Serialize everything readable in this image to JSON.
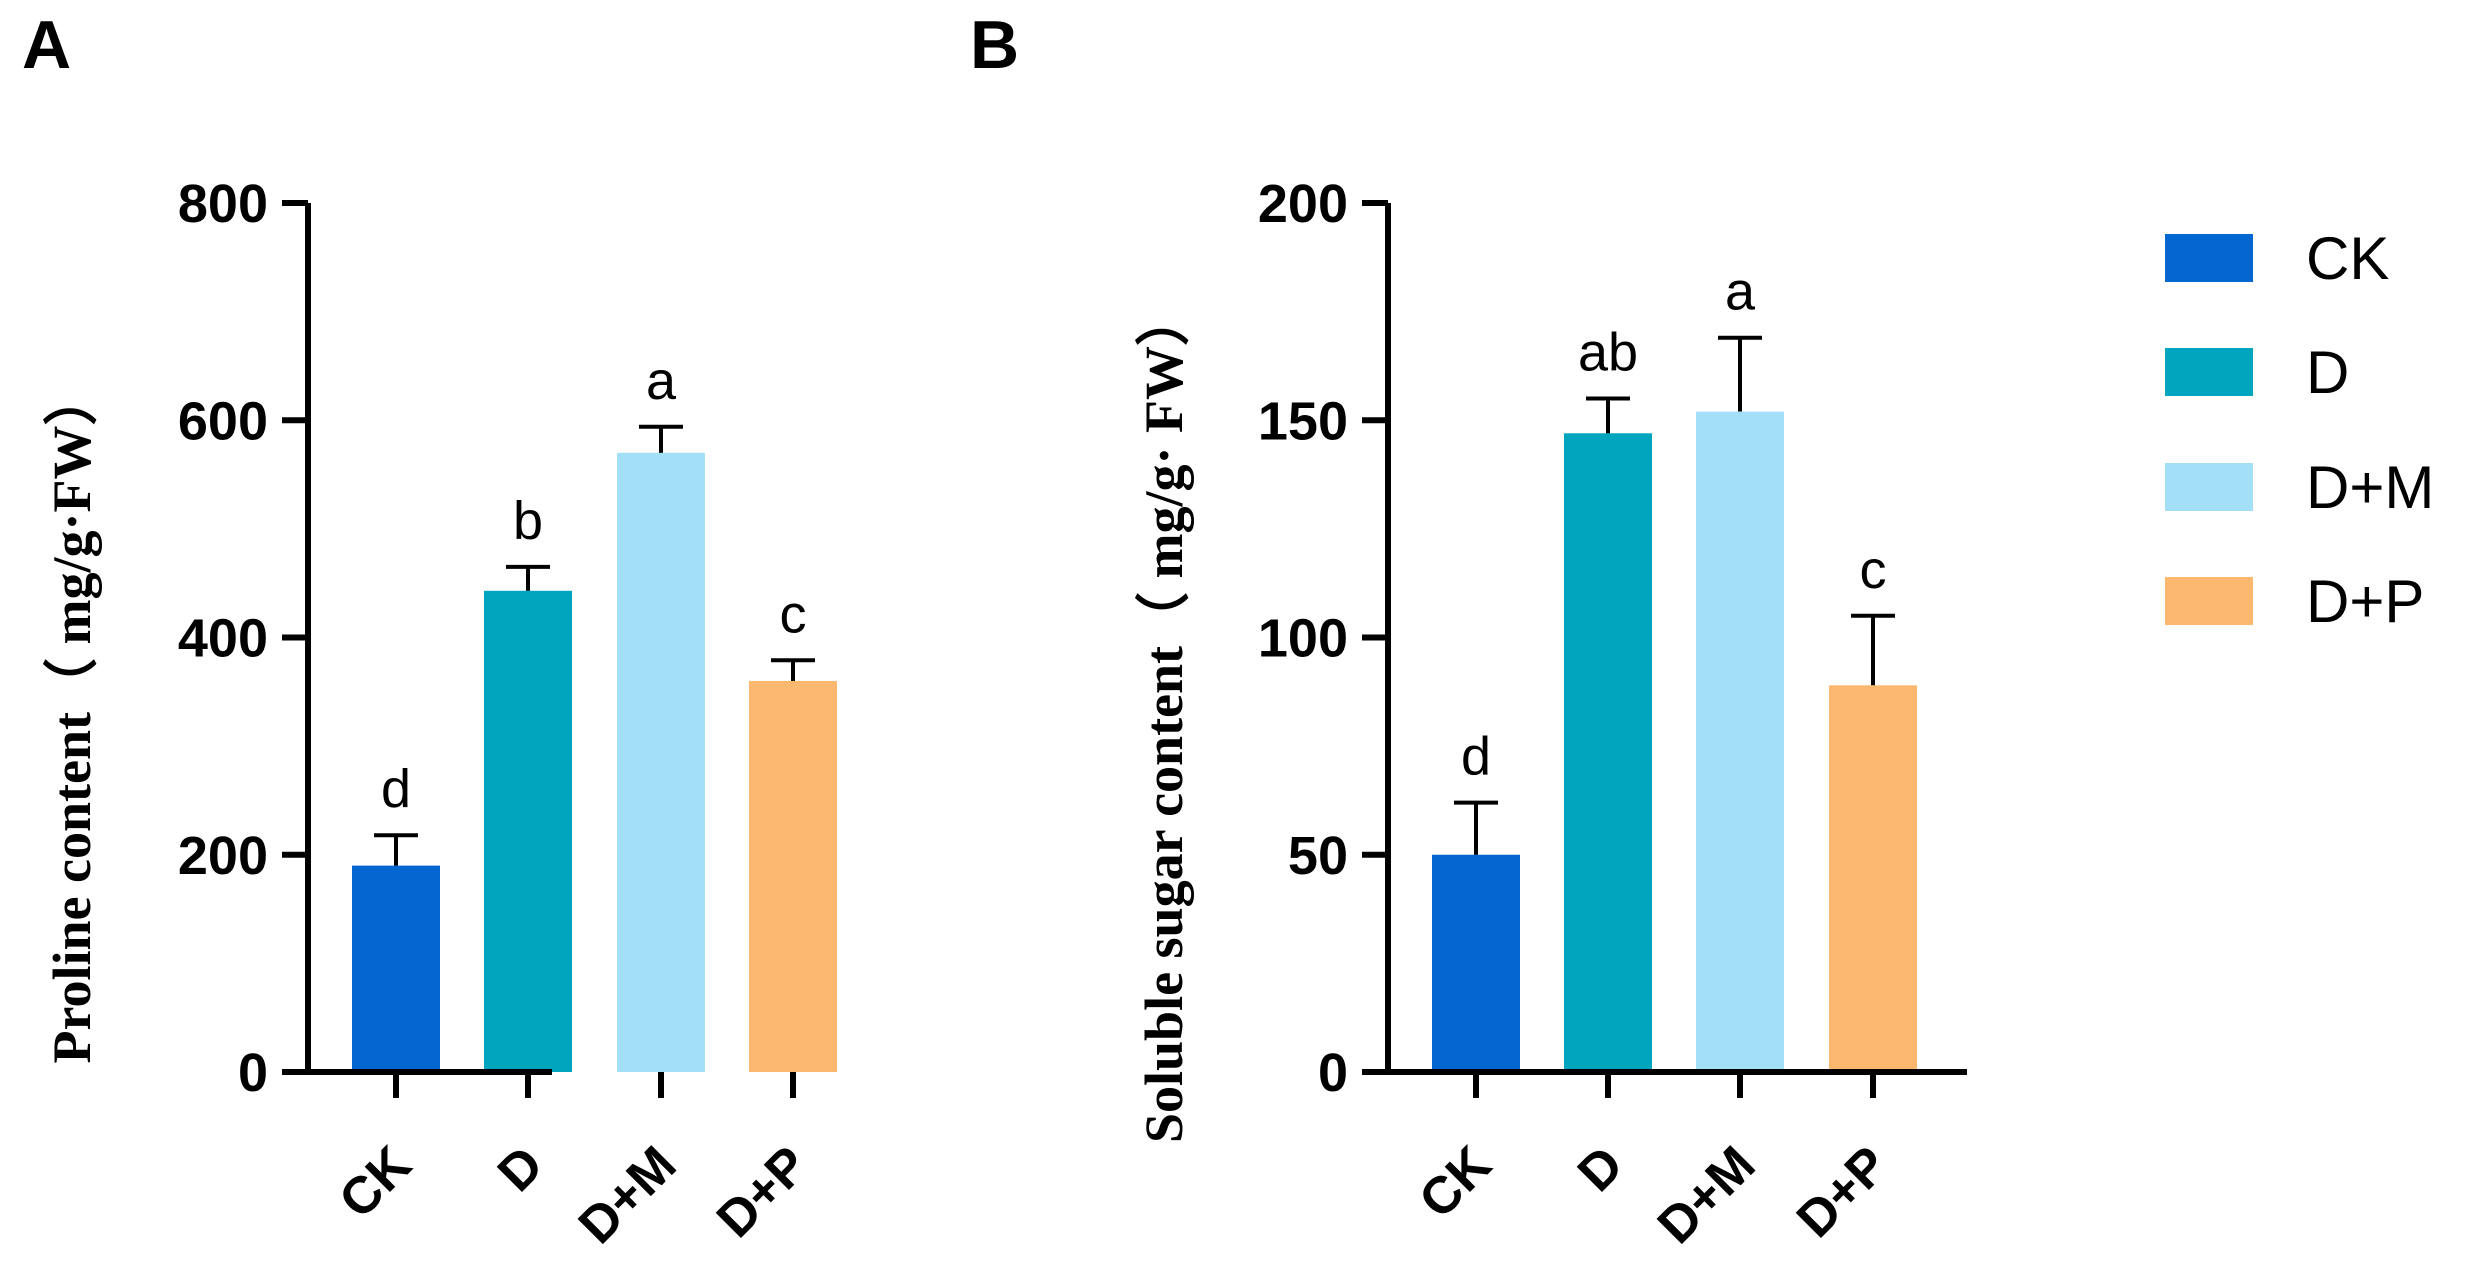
{
  "legend": {
    "entries": [
      {
        "label": "CK",
        "color": "#0466D0"
      },
      {
        "label": "D",
        "color": "#01A5BE"
      },
      {
        "label": "D+M",
        "color": "#A3DFF7"
      },
      {
        "label": "D+P",
        "color": "#FDB870"
      }
    ]
  },
  "chart_data": [
    {
      "panel": "A",
      "type": "bar",
      "categories": [
        "CK",
        "D",
        "D+M",
        "D+P"
      ],
      "values": [
        190,
        443,
        570,
        360
      ],
      "errors": [
        28,
        22,
        24,
        19
      ],
      "significance": [
        "d",
        "b",
        "a",
        "c"
      ],
      "colors": [
        "#0466D0",
        "#01A5BE",
        "#A3DFF7",
        "#FDB870"
      ],
      "ylabel": "Proline content（ mg/g·FW）",
      "ylim": [
        0,
        800
      ],
      "yticks": [
        0,
        200,
        400,
        600,
        800
      ],
      "xlabel": "",
      "title": ""
    },
    {
      "panel": "B",
      "type": "bar",
      "categories": [
        "CK",
        "D",
        "D+M",
        "D+P"
      ],
      "values": [
        50,
        147,
        152,
        89
      ],
      "errors": [
        12,
        8,
        17,
        16
      ],
      "significance": [
        "d",
        "ab",
        "a",
        "c"
      ],
      "colors": [
        "#0466D0",
        "#01A5BE",
        "#A3DFF7",
        "#FDB870"
      ],
      "ylabel": "Soluble sugar content（ mg/g· FW）",
      "ylim": [
        0,
        200
      ],
      "yticks": [
        0,
        50,
        100,
        150,
        200
      ],
      "xlabel": "",
      "title": ""
    }
  ]
}
